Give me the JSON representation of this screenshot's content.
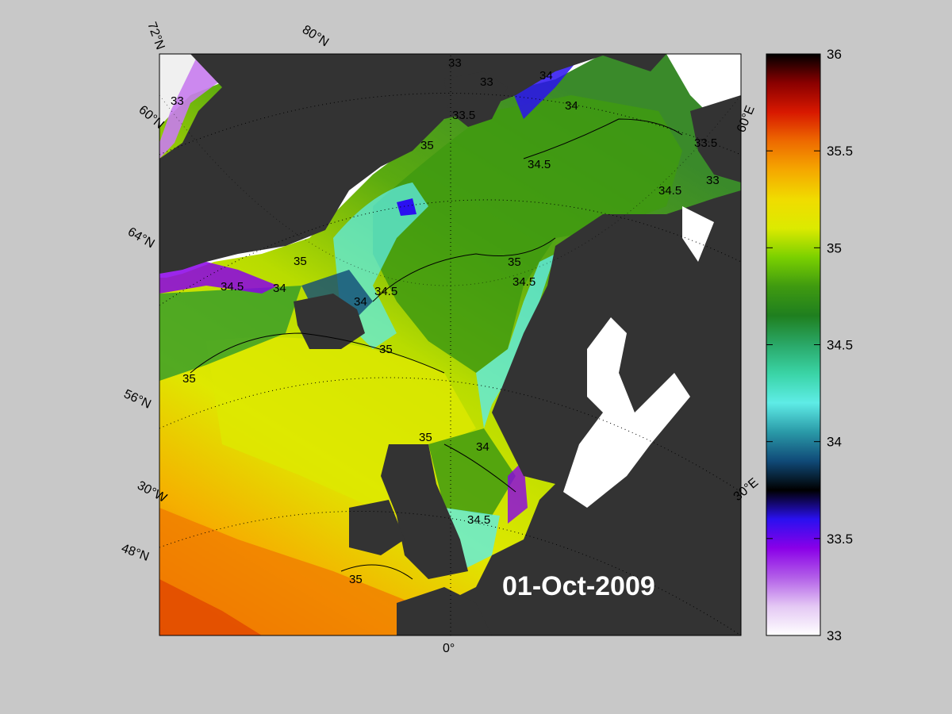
{
  "map": {
    "date_label": "01-Oct-2009",
    "latitude_labels": [
      "72°N",
      "60°N",
      "64°N",
      "56°N",
      "48°N"
    ],
    "meridian_labels": [
      "80°N",
      "60°E",
      "30°E",
      "30°W",
      "0°"
    ],
    "contour_labels": [
      "33",
      "33",
      "33",
      "33.5",
      "34",
      "34",
      "34.5",
      "34.5",
      "35",
      "35",
      "35",
      "35",
      "34.5",
      "34.5",
      "34.5",
      "35",
      "34",
      "34",
      "35",
      "34.5",
      "34",
      "35",
      "33.5",
      "33"
    ]
  },
  "colorbar": {
    "min": 33,
    "max": 36,
    "ticks": [
      "36",
      "35.5",
      "35",
      "34.5",
      "34",
      "33.5",
      "33"
    ],
    "colors": [
      "#ffffff",
      "#e4c8f4",
      "#b25ee8",
      "#8a00e8",
      "#2a10f0",
      "#000000",
      "#104a78",
      "#2a9aa8",
      "#5eece6",
      "#3ad4a6",
      "#2aa868",
      "#1f7f1f",
      "#3f9a10",
      "#7ad000",
      "#dcea00",
      "#f0dc00",
      "#f5a800",
      "#ee6a00",
      "#d81800",
      "#8a0000",
      "#000000"
    ]
  }
}
